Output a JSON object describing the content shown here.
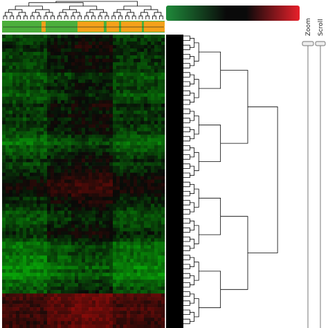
{
  "controls": {
    "zoom": "Zoom",
    "scroll": "Scroll"
  }
}
